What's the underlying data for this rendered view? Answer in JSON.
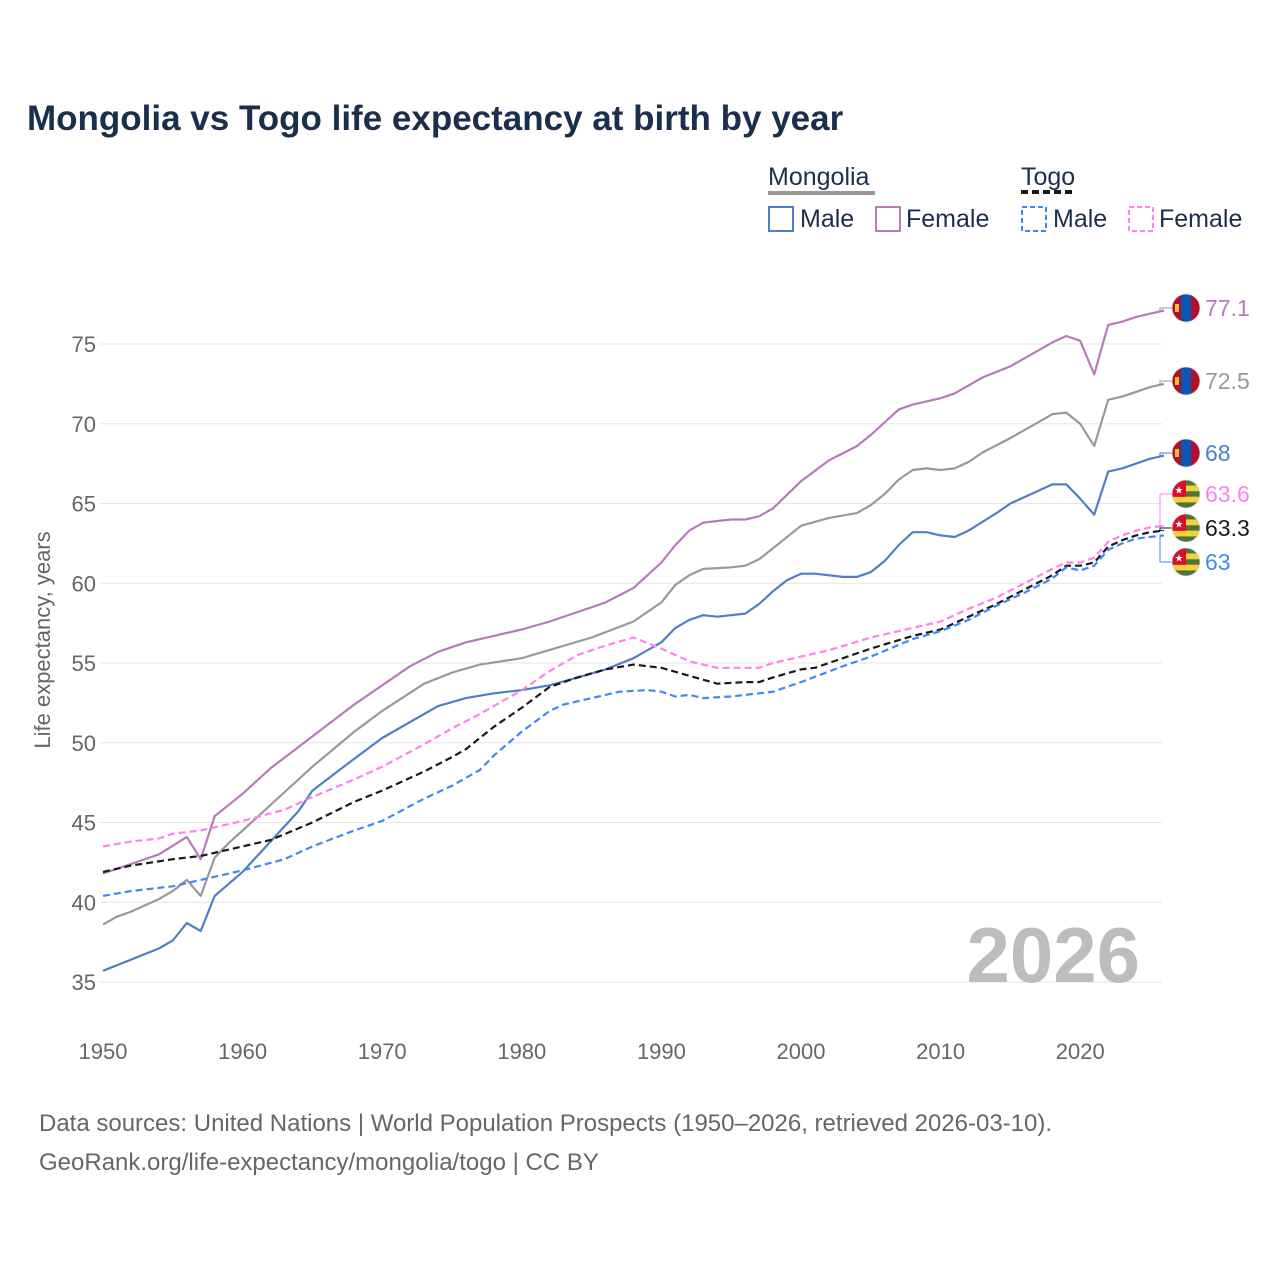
{
  "chart_data": {
    "type": "line",
    "title": "Mongolia vs Togo life expectancy at birth by year",
    "xlabel": "",
    "ylabel": "Life expectancy, years",
    "xlim": [
      1950,
      2026
    ],
    "ylim": [
      33,
      79
    ],
    "x_ticks": [
      1950,
      1960,
      1970,
      1980,
      1990,
      2000,
      2010,
      2020
    ],
    "y_ticks": [
      35,
      40,
      45,
      50,
      55,
      60,
      65,
      70,
      75
    ],
    "grid": true,
    "legend_placement": "top-right",
    "watermark_year": "2026",
    "legend": {
      "groups": [
        {
          "country": "Mongolia",
          "items": [
            "Male",
            "Female"
          ]
        },
        {
          "country": "Togo",
          "items": [
            "Male",
            "Female"
          ]
        }
      ]
    },
    "series": [
      {
        "name": "Mongolia Female",
        "country": "Mongolia",
        "sex": "Female",
        "color": "#b77bb9",
        "dashed": false,
        "end_label": "77.1",
        "x": [
          1950,
          1952,
          1954,
          1956,
          1957,
          1958,
          1960,
          1962,
          1965,
          1968,
          1970,
          1972,
          1974,
          1976,
          1978,
          1980,
          1982,
          1984,
          1986,
          1988,
          1990,
          1991,
          1992,
          1993,
          1995,
          1996,
          1997,
          1998,
          2000,
          2002,
          2004,
          2005,
          2006,
          2007,
          2008,
          2010,
          2011,
          2013,
          2015,
          2017,
          2018,
          2019,
          2020,
          2021,
          2022,
          2023,
          2024,
          2025,
          2026
        ],
        "values": [
          41.8,
          42.4,
          43.0,
          44.1,
          42.7,
          45.4,
          46.8,
          48.4,
          50.4,
          52.4,
          53.6,
          54.8,
          55.7,
          56.3,
          56.7,
          57.1,
          57.6,
          58.2,
          58.8,
          59.7,
          61.3,
          62.4,
          63.3,
          63.8,
          64.0,
          64.0,
          64.2,
          64.7,
          66.4,
          67.7,
          68.6,
          69.3,
          70.1,
          70.9,
          71.2,
          71.6,
          71.9,
          72.9,
          73.6,
          74.6,
          75.1,
          75.5,
          75.2,
          73.1,
          76.2,
          76.4,
          76.7,
          76.9,
          77.1
        ]
      },
      {
        "name": "Mongolia",
        "country": "Mongolia",
        "sex": "Both",
        "color": "#999999",
        "dashed": false,
        "end_label": "72.5",
        "x": [
          1950,
          1951,
          1952,
          1953,
          1954,
          1955,
          1956,
          1957,
          1958,
          1959,
          1960,
          1962,
          1965,
          1968,
          1970,
          1973,
          1975,
          1977,
          1980,
          1985,
          1988,
          1990,
          1991,
          1992,
          1993,
          1995,
          1996,
          1997,
          1998,
          2000,
          2002,
          2004,
          2005,
          2006,
          2007,
          2008,
          2009,
          2010,
          2011,
          2012,
          2013,
          2015,
          2017,
          2018,
          2019,
          2020,
          2021,
          2022,
          2023,
          2024,
          2025,
          2026
        ],
        "values": [
          38.6,
          39.1,
          39.4,
          39.8,
          40.2,
          40.7,
          41.4,
          40.4,
          42.8,
          43.7,
          44.5,
          46.1,
          48.5,
          50.7,
          52.0,
          53.7,
          54.4,
          54.9,
          55.3,
          56.6,
          57.6,
          58.8,
          59.9,
          60.5,
          60.9,
          61.0,
          61.1,
          61.5,
          62.2,
          63.6,
          64.1,
          64.4,
          64.9,
          65.6,
          66.5,
          67.1,
          67.2,
          67.1,
          67.2,
          67.6,
          68.2,
          69.1,
          70.1,
          70.6,
          70.7,
          70.0,
          68.6,
          71.5,
          71.7,
          72.0,
          72.3,
          72.5
        ]
      },
      {
        "name": "Mongolia Male",
        "country": "Mongolia",
        "sex": "Male",
        "color": "#4f7fc8",
        "dashed": false,
        "end_label": "68",
        "x": [
          1950,
          1952,
          1954,
          1955,
          1956,
          1957,
          1958,
          1960,
          1962,
          1964,
          1965,
          1968,
          1970,
          1972,
          1974,
          1976,
          1978,
          1980,
          1982,
          1984,
          1986,
          1988,
          1990,
          1991,
          1992,
          1993,
          1994,
          1996,
          1997,
          1998,
          1999,
          2000,
          2001,
          2003,
          2004,
          2005,
          2006,
          2007,
          2008,
          2009,
          2010,
          2011,
          2012,
          2014,
          2015,
          2017,
          2018,
          2019,
          2020,
          2021,
          2022,
          2023,
          2024,
          2025,
          2026
        ],
        "values": [
          35.7,
          36.4,
          37.1,
          37.6,
          38.7,
          38.2,
          40.4,
          41.9,
          43.8,
          45.7,
          47.0,
          49.0,
          50.3,
          51.3,
          52.3,
          52.8,
          53.1,
          53.3,
          53.6,
          54.1,
          54.6,
          55.3,
          56.3,
          57.2,
          57.7,
          58.0,
          57.9,
          58.1,
          58.7,
          59.5,
          60.2,
          60.6,
          60.6,
          60.4,
          60.4,
          60.7,
          61.4,
          62.4,
          63.2,
          63.2,
          63.0,
          62.9,
          63.3,
          64.4,
          65.0,
          65.8,
          66.2,
          66.2,
          65.3,
          64.3,
          67.0,
          67.2,
          67.5,
          67.8,
          68.0
        ]
      },
      {
        "name": "Togo Female",
        "country": "Togo",
        "sex": "Female",
        "color": "#ff80f0",
        "dashed": true,
        "end_label": "63.6",
        "x": [
          1950,
          1952,
          1954,
          1955,
          1957,
          1960,
          1963,
          1965,
          1968,
          1970,
          1973,
          1975,
          1977,
          1980,
          1982,
          1984,
          1986,
          1988,
          1990,
          1992,
          1994,
          1996,
          1997,
          1998,
          2000,
          2002,
          2005,
          2008,
          2010,
          2012,
          2014,
          2016,
          2018,
          2019,
          2020,
          2021,
          2022,
          2023,
          2024,
          2025,
          2026
        ],
        "values": [
          43.5,
          43.8,
          44.0,
          44.3,
          44.5,
          45.1,
          45.8,
          46.6,
          47.7,
          48.5,
          49.9,
          50.9,
          51.8,
          53.3,
          54.5,
          55.5,
          56.1,
          56.6,
          55.9,
          55.1,
          54.7,
          54.7,
          54.7,
          55.0,
          55.4,
          55.8,
          56.6,
          57.2,
          57.6,
          58.4,
          59.1,
          60.0,
          60.9,
          61.3,
          61.3,
          61.6,
          62.6,
          63.0,
          63.3,
          63.5,
          63.6
        ]
      },
      {
        "name": "Togo",
        "country": "Togo",
        "sex": "Both",
        "color": "#1a1a1a",
        "dashed": true,
        "end_label": "63.3",
        "x": [
          1950,
          1952,
          1955,
          1957,
          1960,
          1962,
          1965,
          1968,
          1970,
          1973,
          1975,
          1976,
          1978,
          1980,
          1982,
          1984,
          1986,
          1988,
          1990,
          1992,
          1994,
          1996,
          1997,
          1998,
          2000,
          2001,
          2003,
          2005,
          2008,
          2010,
          2012,
          2014,
          2016,
          2018,
          2019,
          2020,
          2021,
          2022,
          2023,
          2024,
          2025,
          2026
        ],
        "values": [
          41.9,
          42.3,
          42.7,
          42.9,
          43.5,
          43.9,
          45.0,
          46.3,
          47.0,
          48.2,
          49.1,
          49.6,
          51.0,
          52.2,
          53.5,
          54.1,
          54.6,
          54.9,
          54.7,
          54.2,
          53.7,
          53.8,
          53.8,
          54.1,
          54.6,
          54.7,
          55.3,
          55.9,
          56.7,
          57.1,
          57.9,
          58.7,
          59.6,
          60.5,
          61.1,
          61.1,
          61.3,
          62.3,
          62.7,
          63.0,
          63.2,
          63.3
        ]
      },
      {
        "name": "Togo Male",
        "country": "Togo",
        "sex": "Male",
        "color": "#3d8af7",
        "dashed": true,
        "end_label": "63",
        "x": [
          1950,
          1952,
          1955,
          1957,
          1960,
          1963,
          1965,
          1968,
          1970,
          1973,
          1975,
          1977,
          1978,
          1980,
          1982,
          1983,
          1985,
          1987,
          1989,
          1990,
          1991,
          1992,
          1993,
          1995,
          1998,
          2000,
          2003,
          2005,
          2008,
          2010,
          2012,
          2014,
          2016,
          2018,
          2019,
          2020,
          2021,
          2022,
          2023,
          2024,
          2025,
          2026
        ],
        "values": [
          40.4,
          40.7,
          41.0,
          41.4,
          42.0,
          42.7,
          43.5,
          44.5,
          45.1,
          46.5,
          47.3,
          48.3,
          49.2,
          50.7,
          52.0,
          52.4,
          52.8,
          53.2,
          53.3,
          53.2,
          52.9,
          53.0,
          52.8,
          52.9,
          53.2,
          53.8,
          54.8,
          55.4,
          56.5,
          57.0,
          57.7,
          58.6,
          59.4,
          60.3,
          61.0,
          60.8,
          61.1,
          62.1,
          62.5,
          62.8,
          62.9,
          63.0
        ]
      }
    ]
  },
  "footer": {
    "line1": "Data sources: United Nations | World Population Prospects (1950–2026, retrieved 2026-03-10).",
    "line2": "GeoRank.org/life-expectancy/mongolia/togo | CC BY"
  }
}
